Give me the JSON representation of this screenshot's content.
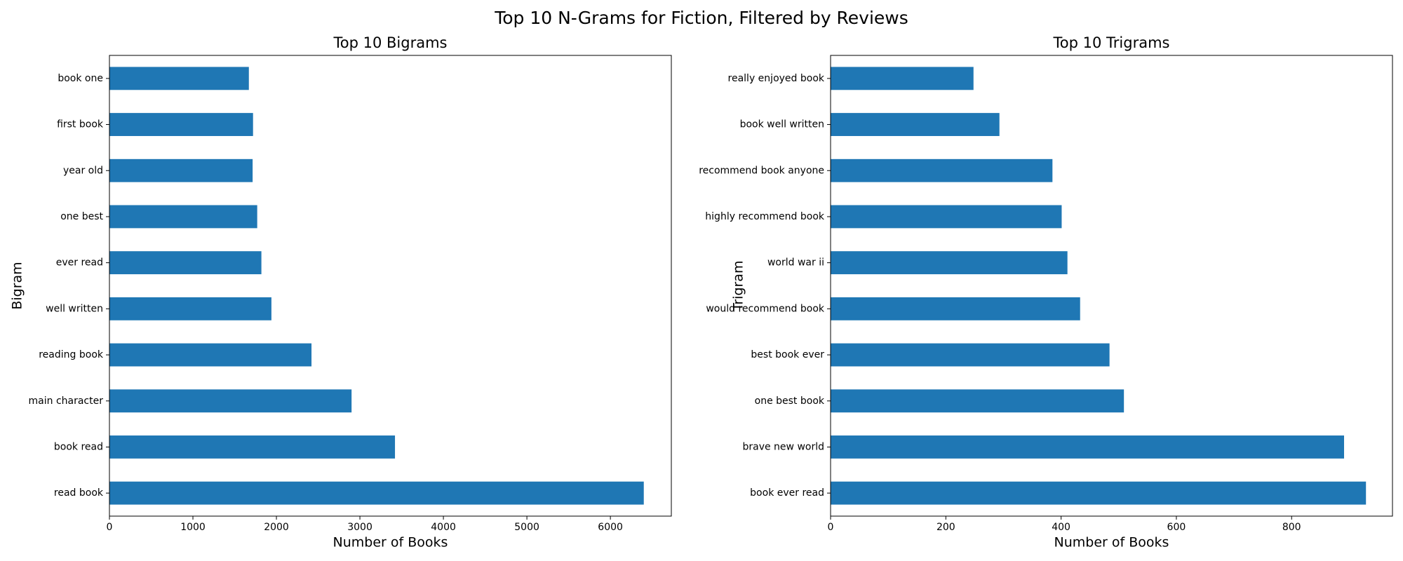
{
  "title": "Top 10 N-Grams for Fiction, Filtered by Reviews",
  "chart_data": [
    {
      "type": "barh",
      "title": "Top 10 Bigrams",
      "x_label": "Number of Books",
      "y_label": "Bigram",
      "categories": [
        "book one",
        "first book",
        "year old",
        "one best",
        "ever read",
        "well written",
        "reading book",
        "main character",
        "book read",
        "read book"
      ],
      "values": [
        1670,
        1720,
        1715,
        1770,
        1820,
        1940,
        2420,
        2900,
        3420,
        6400
      ],
      "color": "#1f77b4",
      "xlim": [
        0,
        6730
      ],
      "xticks": [
        0,
        1000,
        2000,
        3000,
        4000,
        5000,
        6000
      ]
    },
    {
      "type": "barh",
      "title": "Top 10 Trigrams",
      "x_label": "Number of Books",
      "y_label": "Trigram",
      "categories": [
        "really enjoyed book",
        "book well written",
        "recommend book anyone",
        "highly recommend book",
        "world war ii",
        "would recommend book",
        "best book ever",
        "one best book",
        "brave new world",
        "book ever read"
      ],
      "values": [
        248,
        293,
        385,
        401,
        411,
        433,
        484,
        509,
        891,
        929
      ],
      "color": "#1f77b4",
      "xlim": [
        0,
        975
      ],
      "xticks": [
        0,
        200,
        400,
        600,
        800
      ]
    }
  ]
}
